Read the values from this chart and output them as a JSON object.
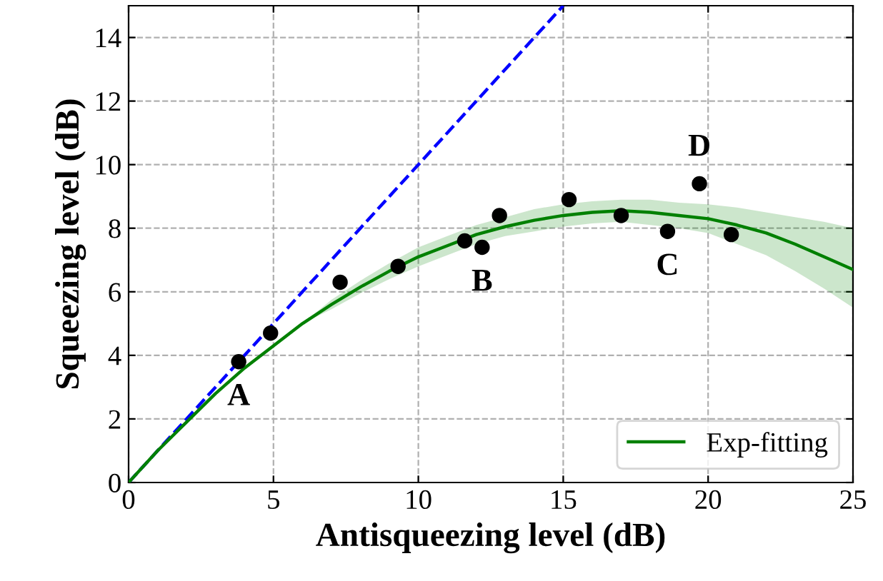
{
  "chart_data": {
    "type": "scatter",
    "xlabel": "Antisqueezing level (dB)",
    "ylabel": "Squeezing level (dB)",
    "xlim": [
      0,
      25
    ],
    "ylim": [
      0,
      15
    ],
    "xticks": [
      0,
      5,
      10,
      15,
      20,
      25
    ],
    "yticks": [
      0,
      2,
      4,
      6,
      8,
      10,
      12,
      14
    ],
    "grid": true,
    "legend": "bottom right",
    "series": [
      {
        "type": "line",
        "color": "#0000ff",
        "line_style": "dashed",
        "marker": "none",
        "x": [
          0,
          15
        ],
        "values": [
          0,
          15
        ]
      },
      {
        "type": "line",
        "name": "Exp-fitting",
        "color": "#008000",
        "line_style": "solid",
        "marker": "none",
        "x": [
          0,
          1,
          2,
          3,
          4,
          5,
          6,
          7,
          8,
          9,
          10,
          11,
          12,
          13,
          14,
          15,
          16,
          17,
          18,
          19,
          20,
          21,
          22,
          23,
          24,
          25
        ],
        "values": [
          0,
          1.0,
          1.9,
          2.8,
          3.6,
          4.3,
          5.0,
          5.6,
          6.15,
          6.65,
          7.1,
          7.45,
          7.8,
          8.05,
          8.25,
          8.4,
          8.5,
          8.55,
          8.5,
          8.4,
          8.3,
          8.1,
          7.85,
          7.5,
          7.1,
          6.7
        ],
        "lower": [
          0,
          1.0,
          1.9,
          2.8,
          3.6,
          4.3,
          5.0,
          5.45,
          5.95,
          6.4,
          6.8,
          7.15,
          7.5,
          7.75,
          7.9,
          8.05,
          8.15,
          8.2,
          8.1,
          8.0,
          7.85,
          7.5,
          7.15,
          6.65,
          6.1,
          5.5
        ],
        "upper": [
          0,
          1.0,
          1.9,
          2.8,
          3.6,
          4.3,
          5.0,
          5.75,
          6.35,
          6.9,
          7.4,
          7.75,
          8.1,
          8.35,
          8.6,
          8.75,
          8.85,
          8.9,
          8.9,
          8.8,
          8.75,
          8.65,
          8.5,
          8.35,
          8.2,
          8.0
        ]
      },
      {
        "color": "#000000",
        "marker": "circle",
        "x": [
          3.8,
          4.9,
          7.3,
          9.3,
          11.6,
          12.2,
          12.8,
          15.2,
          17.0,
          18.6,
          19.7,
          20.8
        ],
        "values": [
          3.8,
          4.7,
          6.3,
          6.8,
          7.6,
          7.4,
          8.4,
          8.9,
          8.4,
          7.9,
          9.4,
          7.8
        ]
      }
    ],
    "annotations": [
      {
        "text": "A",
        "x": 3.8,
        "y": 3.8
      },
      {
        "text": "B",
        "x": 12.2,
        "y": 7.4
      },
      {
        "text": "C",
        "x": 18.6,
        "y": 7.9
      },
      {
        "text": "D",
        "x": 19.7,
        "y": 9.4
      }
    ]
  }
}
